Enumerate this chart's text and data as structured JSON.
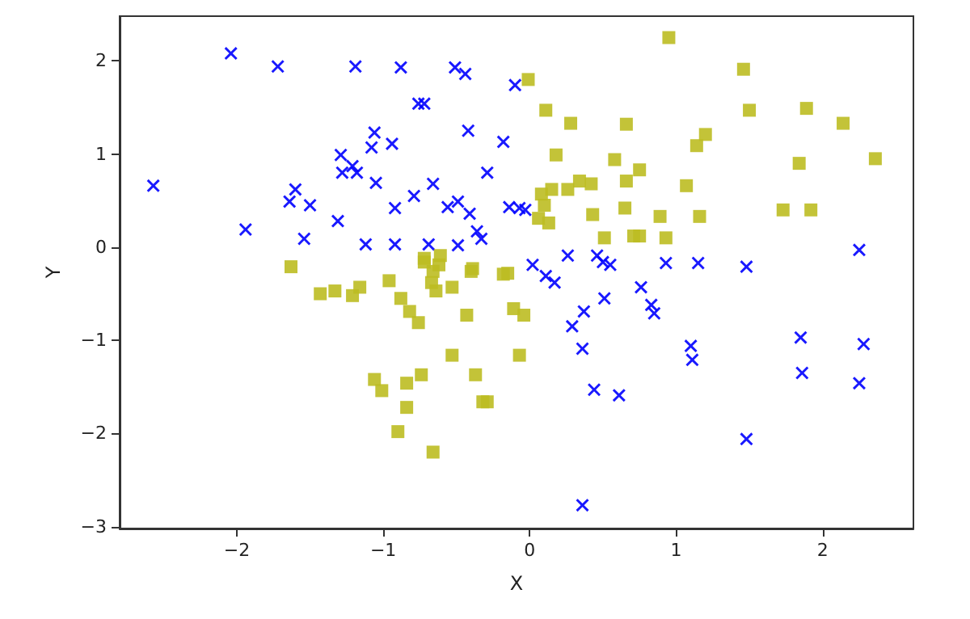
{
  "chart_data": {
    "type": "scatter",
    "xlabel": "X",
    "ylabel": "Y",
    "xlim": [
      -2.8,
      2.62
    ],
    "ylim": [
      -3.02,
      2.48
    ],
    "xticks": [
      -2,
      -1,
      0,
      1,
      2
    ],
    "yticks": [
      -3,
      -2,
      -1,
      0,
      1,
      2
    ],
    "grid": false,
    "series": [
      {
        "color": "#0000ff",
        "marker": "cross",
        "x": [
          -2.57,
          -2.04,
          -1.72,
          -1.94,
          -1.19,
          -0.88,
          -0.51,
          -0.44,
          -0.76,
          -0.72,
          -1.06,
          -1.08,
          -0.94,
          -0.42,
          -0.18,
          -1.29,
          -1.28,
          -1.21,
          -1.18,
          -1.05,
          -0.29,
          -1.6,
          -1.64,
          -1.5,
          -1.31,
          -0.92,
          -0.79,
          -0.66,
          -0.56,
          -0.49,
          -0.41,
          -0.36,
          -0.33,
          -1.54,
          -1.12,
          -0.92,
          -0.69,
          -0.49,
          -0.14,
          -0.1,
          -0.07,
          -0.03,
          0.02,
          0.11,
          0.17,
          0.26,
          0.46,
          0.5,
          0.55,
          0.93,
          1.15,
          1.48,
          2.25,
          0.76,
          0.83,
          0.85,
          0.51,
          0.37,
          0.29,
          0.36,
          1.1,
          1.11,
          1.85,
          1.86,
          2.28,
          2.25,
          1.48,
          0.44,
          0.61,
          0.36
        ],
        "values": [
          0.66,
          2.08,
          1.94,
          0.19,
          1.94,
          1.93,
          1.93,
          1.86,
          1.54,
          1.54,
          1.23,
          1.07,
          1.11,
          1.25,
          1.13,
          0.99,
          0.8,
          0.87,
          0.8,
          0.69,
          0.8,
          0.62,
          0.49,
          0.45,
          0.28,
          0.42,
          0.55,
          0.68,
          0.43,
          0.49,
          0.36,
          0.17,
          0.09,
          0.09,
          0.03,
          0.03,
          0.03,
          0.02,
          0.43,
          1.74,
          0.42,
          0.4,
          -0.19,
          -0.31,
          -0.38,
          -0.09,
          -0.09,
          -0.16,
          -0.19,
          -0.17,
          -0.17,
          -0.21,
          -0.03,
          -0.43,
          -0.62,
          -0.71,
          -0.55,
          -0.69,
          -0.85,
          -1.09,
          -1.06,
          -1.21,
          -0.97,
          -1.35,
          -1.04,
          -1.46,
          -2.06,
          -1.53,
          -1.59,
          -2.77
        ]
      },
      {
        "color": "#bcbd22",
        "marker": "square",
        "x": [
          0.95,
          -0.01,
          1.46,
          0.11,
          0.28,
          0.66,
          1.5,
          1.89,
          2.14,
          2.36,
          1.84,
          1.2,
          1.14,
          0.18,
          0.58,
          0.75,
          0.66,
          1.07,
          0.34,
          0.42,
          0.26,
          0.15,
          0.08,
          0.1,
          0.06,
          0.13,
          0.43,
          0.65,
          0.89,
          1.16,
          1.73,
          1.92,
          0.51,
          0.71,
          0.75,
          0.93,
          -0.15,
          -0.11,
          -0.04,
          -0.07,
          -0.29,
          -1.63,
          -1.43,
          -1.33,
          -1.21,
          -1.16,
          -0.96,
          -0.88,
          -0.82,
          -0.76,
          -0.72,
          -0.62,
          -0.67,
          -0.64,
          -0.53,
          -0.4,
          -0.43,
          -0.53,
          -0.37,
          -0.32,
          -1.06,
          -1.01,
          -0.84,
          -0.74,
          -0.84,
          -0.9,
          -0.66,
          -0.18,
          -0.66,
          -0.61,
          -0.72,
          -0.39
        ],
        "values": [
          2.25,
          1.8,
          1.91,
          1.47,
          1.33,
          1.32,
          1.47,
          1.49,
          1.33,
          0.95,
          0.9,
          1.21,
          1.09,
          0.99,
          0.94,
          0.83,
          0.71,
          0.66,
          0.71,
          0.68,
          0.62,
          0.62,
          0.57,
          0.45,
          0.31,
          0.26,
          0.35,
          0.42,
          0.33,
          0.33,
          0.4,
          0.4,
          0.1,
          0.12,
          0.12,
          0.1,
          -0.28,
          -0.66,
          -0.73,
          -1.16,
          -1.66,
          -0.21,
          -0.5,
          -0.47,
          -0.52,
          -0.43,
          -0.36,
          -0.55,
          -0.69,
          -0.81,
          -0.12,
          -0.19,
          -0.38,
          -0.47,
          -0.43,
          -0.26,
          -0.73,
          -1.16,
          -1.37,
          -1.66,
          -1.42,
          -1.54,
          -1.46,
          -1.37,
          -1.72,
          -1.98,
          -2.2,
          -0.29,
          -0.26,
          -0.09,
          -0.16,
          -0.23
        ]
      }
    ]
  }
}
